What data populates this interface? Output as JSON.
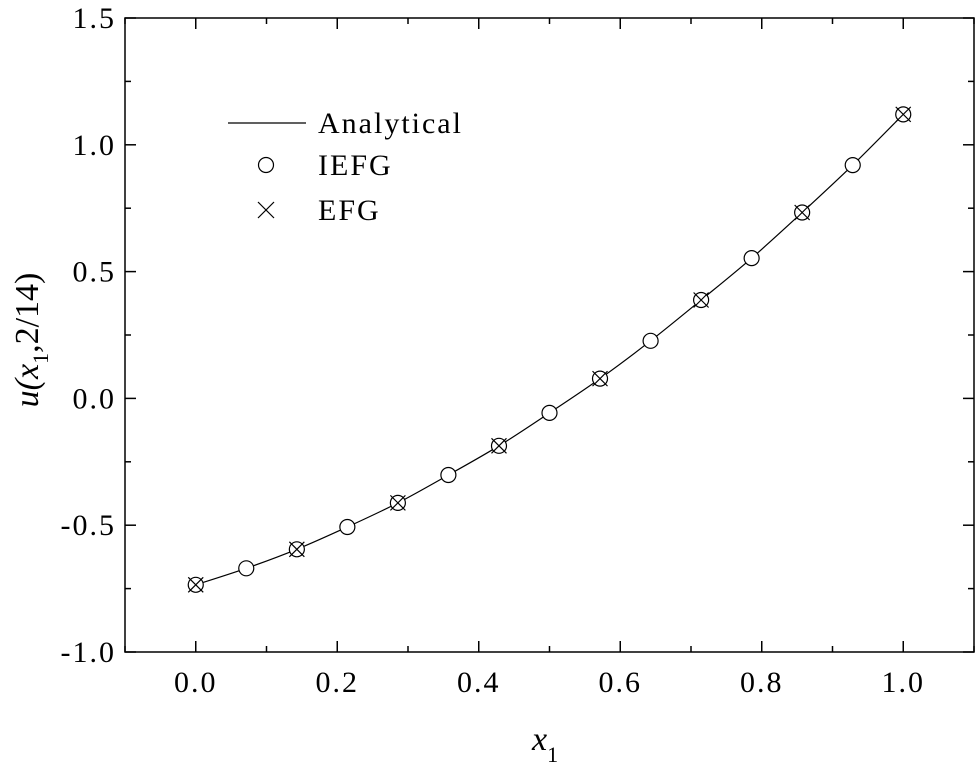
{
  "chart_data": {
    "type": "line",
    "title": "",
    "xlabel": {
      "main": "x",
      "sub": "1"
    },
    "ylabel": {
      "prefix": "u(",
      "var": "x",
      "sub": "1",
      "suffix": ",2/14)"
    },
    "xlim": [
      -0.1,
      1.1
    ],
    "ylim": [
      -1.0,
      1.5
    ],
    "xticks": [
      {
        "value": 0.0,
        "label": "0.0"
      },
      {
        "value": 0.2,
        "label": "0.2"
      },
      {
        "value": 0.4,
        "label": "0.4"
      },
      {
        "value": 0.6,
        "label": "0.6"
      },
      {
        "value": 0.8,
        "label": "0.8"
      },
      {
        "value": 1.0,
        "label": "1.0"
      }
    ],
    "yticks": [
      {
        "value": -1.0,
        "label": "-1.0"
      },
      {
        "value": -0.5,
        "label": "-0.5"
      },
      {
        "value": 0.0,
        "label": "0.0"
      },
      {
        "value": 0.5,
        "label": "0.5"
      },
      {
        "value": 1.0,
        "label": "1.0"
      },
      {
        "value": 1.5,
        "label": "1.5"
      }
    ],
    "grid": false,
    "legend_position": "top-left",
    "series": [
      {
        "name": "Analytical",
        "style": "line",
        "x": [
          0.0,
          0.0714,
          0.1429,
          0.2143,
          0.2857,
          0.3571,
          0.4286,
          0.5,
          0.5714,
          0.6429,
          0.7143,
          0.7857,
          0.8571,
          0.9286,
          1.0
        ],
        "y": [
          -0.735,
          -0.67,
          -0.595,
          -0.507,
          -0.412,
          -0.302,
          -0.187,
          -0.057,
          0.078,
          0.227,
          0.388,
          0.553,
          0.733,
          0.92,
          1.12
        ]
      },
      {
        "name": "IEFG",
        "style": "circle",
        "x": [
          0.0,
          0.0714,
          0.1429,
          0.2143,
          0.2857,
          0.3571,
          0.4286,
          0.5,
          0.5714,
          0.6429,
          0.7143,
          0.7857,
          0.8571,
          0.9286,
          1.0
        ],
        "y": [
          -0.735,
          -0.67,
          -0.595,
          -0.507,
          -0.412,
          -0.302,
          -0.187,
          -0.057,
          0.078,
          0.227,
          0.388,
          0.553,
          0.733,
          0.92,
          1.12
        ]
      },
      {
        "name": "EFG",
        "style": "cross",
        "x": [
          0.0,
          0.1429,
          0.2857,
          0.4286,
          0.5714,
          0.7143,
          0.8571,
          1.0
        ],
        "y": [
          -0.735,
          -0.595,
          -0.412,
          -0.187,
          0.078,
          0.388,
          0.733,
          1.12
        ]
      }
    ]
  }
}
